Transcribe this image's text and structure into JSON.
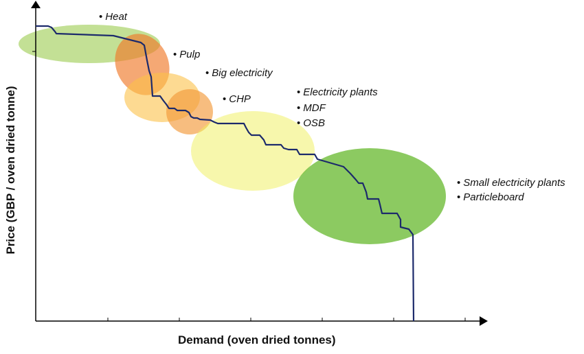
{
  "axes": {
    "x_title": "Demand (oven dried tonnes)",
    "y_title": "Price (GBP / oven dried tonne)"
  },
  "colors": {
    "curve": "#1c2a6b",
    "axis": "#000000",
    "heat": "#9bcb4f",
    "pulp": "#ef7a2a",
    "big_electricity": "#fcc24a",
    "chp": "#f39a3a",
    "mid_cluster": "#f0ef5a",
    "small_cluster": "#6fbd3a"
  },
  "labels": {
    "heat": "Heat",
    "pulp": "Pulp",
    "big_electricity": "Big electricity",
    "chp": "CHP",
    "electricity_plants": "Electricity plants",
    "mdf": "MDF",
    "osb": "OSB",
    "small_electricity_plants": "Small electricity plants",
    "particleboard": "Particleboard"
  },
  "bullet": "•"
}
